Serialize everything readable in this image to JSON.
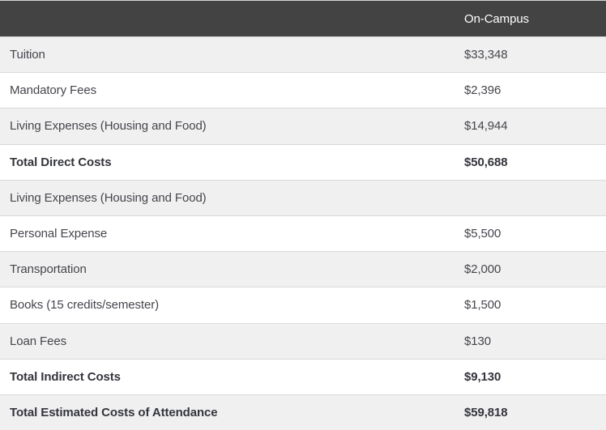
{
  "header": {
    "empty_label": "",
    "column_label": "On-Campus"
  },
  "rows": [
    {
      "label": "Tuition",
      "value": "$33,348",
      "bold": false
    },
    {
      "label": "Mandatory Fees",
      "value": "$2,396",
      "bold": false
    },
    {
      "label": "Living Expenses (Housing and Food)",
      "value": "$14,944",
      "bold": false
    },
    {
      "label": "Total Direct Costs",
      "value": "$50,688",
      "bold": true
    },
    {
      "label": "Living Expenses (Housing and Food)",
      "value": "",
      "bold": false
    },
    {
      "label": "Personal Expense",
      "value": "$5,500",
      "bold": false
    },
    {
      "label": "Transportation",
      "value": "$2,000",
      "bold": false
    },
    {
      "label": "Books (15 credits/semester)",
      "value": "$1,500",
      "bold": false
    },
    {
      "label": "Loan Fees",
      "value": "$130",
      "bold": false
    },
    {
      "label": "Total Indirect Costs",
      "value": "$9,130",
      "bold": true
    },
    {
      "label": "Total Estimated Costs of Attendance",
      "value": "$59,818",
      "bold": true
    }
  ],
  "colors": {
    "header_bg": "#434343",
    "header_text": "#ffffff",
    "row_bg": "#ffffff",
    "row_alt_bg": "#f0f0f0",
    "border": "#d9d9d9",
    "text": "#45464d",
    "bold_text": "#34353c"
  }
}
